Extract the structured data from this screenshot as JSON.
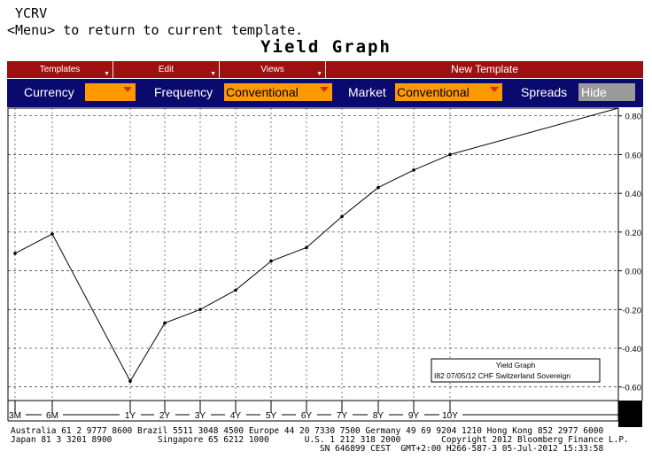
{
  "command": {
    "ticker": "YCRV",
    "hint": "<Menu> to return to current template."
  },
  "title": "Yield Graph",
  "menubar": {
    "templates": "Templates",
    "edit": "Edit",
    "views": "Views",
    "new_template": "New Template"
  },
  "controls": {
    "currency_label": "Currency",
    "currency_value": "",
    "frequency_label": "Frequency",
    "frequency_value": "Conventional",
    "market_label": "Market",
    "market_value": "Conventional",
    "spreads_label": "Spreads",
    "spreads_value": "Hide"
  },
  "chart_data": {
    "type": "line",
    "categories": [
      "3M",
      "6M",
      "1Y",
      "2Y",
      "3Y",
      "4Y",
      "5Y",
      "6Y",
      "7Y",
      "8Y",
      "9Y",
      "10Y"
    ],
    "x_years": [
      0.25,
      0.5,
      1,
      2,
      3,
      4,
      5,
      6,
      7,
      8,
      9,
      10
    ],
    "extra_point": {
      "x_label": "",
      "y": 0.84
    },
    "values": [
      0.09,
      0.19,
      -0.57,
      -0.27,
      -0.2,
      -0.1,
      0.05,
      0.12,
      0.28,
      0.43,
      0.52,
      0.6
    ],
    "y_ticks": [
      "0.80",
      "0.60",
      "0.40",
      "0.20",
      "0.00",
      "-0.20",
      "-0.40",
      "-0.60"
    ],
    "ylim": [
      -0.67,
      0.84
    ],
    "grid": true,
    "legend": {
      "placement": "bottom-right",
      "title": "Yield Graph",
      "entry": "I82 07/05/12   CHF Switzerland Sovereign"
    }
  },
  "footer": {
    "line1": "Australia 61 2 9777 8600 Brazil 5511 3048 4500 Europe 44 20 7330 7500 Germany 49 69 9204 1210 Hong Kong 852 2977 6000",
    "line2": "Japan 81 3 3201 8900         Singapore 65 6212 1000       U.S. 1 212 318 2000        Copyright 2012 Bloomberg Finance L.P.",
    "line3": "                                                             SN 646899 CEST  GMT+2:00 H266-587-3 05-Jul-2012 15:33:58"
  }
}
